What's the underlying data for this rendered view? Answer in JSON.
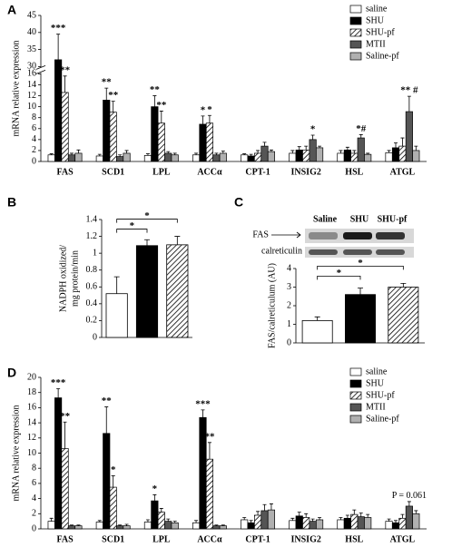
{
  "chart_data": [
    {
      "type": "grouped_bar",
      "label": "A",
      "ylabel": "mRNA relative expression",
      "categories": [
        "FAS",
        "SCD1",
        "LPL",
        "ACCα",
        "CPT-1",
        "INSIG2",
        "HSL",
        "ATGL"
      ],
      "ylim": [
        0,
        45
      ],
      "axis_break": [
        16,
        30
      ],
      "yticks": [
        0,
        2,
        4,
        6,
        8,
        10,
        12,
        14,
        16,
        30,
        35,
        40,
        45
      ],
      "legend": "upper right",
      "series": [
        {
          "name": "saline",
          "color": "#ffffff",
          "values": [
            1.2,
            1.0,
            1.1,
            1.2,
            1.2,
            1.5,
            1.5,
            1.6
          ],
          "errors": [
            0.2,
            0.3,
            0.3,
            0.3,
            0.2,
            0.5,
            0.5,
            0.4
          ]
        },
        {
          "name": "SHU",
          "color": "#000000",
          "values": [
            32,
            11.2,
            10.0,
            6.8,
            1.0,
            2.1,
            2.1,
            2.5
          ],
          "errors": [
            7.5,
            2.2,
            2.0,
            1.5,
            0.3,
            0.6,
            0.5,
            0.9
          ]
        },
        {
          "name": "SHU-pf",
          "color": "hatch",
          "values": [
            12.6,
            9.0,
            7.0,
            7.0,
            1.5,
            2.1,
            1.5,
            2.8
          ],
          "errors": [
            3.0,
            2.0,
            2.2,
            1.4,
            0.5,
            0.7,
            0.5,
            1.5
          ]
        },
        {
          "name": "MTII",
          "color": "#555555",
          "values": [
            1.2,
            0.9,
            1.5,
            1.2,
            2.8,
            4.0,
            4.3,
            9.1
          ],
          "errors": [
            0.3,
            0.3,
            0.3,
            0.3,
            0.7,
            0.8,
            0.6,
            2.8
          ]
        },
        {
          "name": "Saline-pf",
          "color": "#b0b0b0",
          "values": [
            1.5,
            1.5,
            1.2,
            1.5,
            1.8,
            2.5,
            1.3,
            2.0
          ],
          "errors": [
            0.6,
            0.5,
            0.3,
            0.4,
            0.3,
            0.3,
            0.2,
            0.8
          ]
        }
      ],
      "annotations": [
        {
          "category": 0,
          "series": 1,
          "text": "***"
        },
        {
          "category": 0,
          "series": 2,
          "text": "**"
        },
        {
          "category": 1,
          "series": 1,
          "text": "**"
        },
        {
          "category": 1,
          "series": 2,
          "text": "**"
        },
        {
          "category": 2,
          "series": 1,
          "text": "**"
        },
        {
          "category": 2,
          "series": 2,
          "text": "**"
        },
        {
          "category": 3,
          "series": 1,
          "text": "*"
        },
        {
          "category": 3,
          "series": 2,
          "text": "*"
        },
        {
          "category": 5,
          "series": 3,
          "text": "*"
        },
        {
          "category": 6,
          "series": 3,
          "text": "*#"
        },
        {
          "category": 7,
          "series": 3,
          "text": "** #"
        }
      ]
    },
    {
      "type": "bar",
      "label": "B",
      "ylabel": [
        "NADPH oxidized/",
        "mg protein/min"
      ],
      "values": [
        0.52,
        1.09,
        1.1
      ],
      "errors": [
        0.2,
        0.07,
        0.1
      ],
      "fills": [
        "#ffffff",
        "#000000",
        "hatch"
      ],
      "ylim": [
        0,
        1.4
      ],
      "yticks": [
        0,
        0.2,
        0.4,
        0.6,
        0.8,
        1,
        1.2,
        1.4
      ],
      "comparisons": [
        {
          "from": 0,
          "to": 1,
          "text": "*"
        },
        {
          "from": 0,
          "to": 2,
          "text": "*"
        }
      ]
    },
    {
      "type": "bar",
      "label": "C",
      "ylabel": [
        "FAS/calreticulum (AU)"
      ],
      "blot": {
        "lanes": [
          "Saline",
          "SHU",
          "SHU-pf"
        ],
        "rows": [
          "FAS",
          "calreticulin"
        ]
      },
      "values": [
        1.2,
        2.6,
        3.0
      ],
      "errors": [
        0.2,
        0.35,
        0.2
      ],
      "fills": [
        "#ffffff",
        "#000000",
        "hatch"
      ],
      "ylim": [
        0,
        4
      ],
      "yticks": [
        0,
        1,
        2,
        3,
        4
      ],
      "comparisons": [
        {
          "from": 0,
          "to": 1,
          "text": "*"
        },
        {
          "from": 0,
          "to": 2,
          "text": "*"
        }
      ]
    },
    {
      "type": "grouped_bar",
      "label": "D",
      "ylabel": "mRNA relative expression",
      "categories": [
        "FAS",
        "SCD1",
        "LPL",
        "ACCα",
        "CPT-1",
        "INSIG2",
        "HSL",
        "ATGL"
      ],
      "ylim": [
        0,
        20
      ],
      "yticks": [
        0,
        2,
        4,
        6,
        8,
        10,
        12,
        14,
        16,
        18,
        20
      ],
      "legend": "upper right",
      "series": [
        {
          "name": "saline",
          "color": "#ffffff",
          "values": [
            1.0,
            0.9,
            0.9,
            0.8,
            1.2,
            1.1,
            1.2,
            1.0
          ],
          "errors": [
            0.4,
            0.2,
            0.3,
            0.3,
            0.3,
            0.3,
            0.3,
            0.3
          ]
        },
        {
          "name": "SHU",
          "color": "#000000",
          "values": [
            17.3,
            12.6,
            3.7,
            14.7,
            0.8,
            1.7,
            1.4,
            0.8
          ],
          "errors": [
            1.2,
            3.5,
            0.8,
            1.0,
            0.3,
            0.5,
            0.4,
            0.3
          ]
        },
        {
          "name": "SHU-pf",
          "color": "hatch",
          "values": [
            10.6,
            5.5,
            2.2,
            9.2,
            1.8,
            1.5,
            1.9,
            1.4
          ],
          "errors": [
            3.5,
            1.5,
            0.5,
            2.2,
            0.5,
            0.5,
            0.6,
            0.5
          ]
        },
        {
          "name": "MTII",
          "color": "#555555",
          "values": [
            0.4,
            0.4,
            1.0,
            0.4,
            2.4,
            1.0,
            1.6,
            3.0
          ],
          "errors": [
            0.1,
            0.1,
            0.3,
            0.1,
            0.8,
            0.3,
            0.5,
            0.6
          ]
        },
        {
          "name": "Saline-pf",
          "color": "#b0b0b0",
          "values": [
            0.4,
            0.4,
            0.8,
            0.4,
            2.5,
            1.2,
            1.5,
            2.0
          ],
          "errors": [
            0.1,
            0.2,
            0.2,
            0.1,
            0.8,
            0.3,
            0.4,
            0.4
          ]
        }
      ],
      "annotations": [
        {
          "category": 0,
          "series": 1,
          "text": "***"
        },
        {
          "category": 0,
          "series": 2,
          "text": "**"
        },
        {
          "category": 1,
          "series": 1,
          "text": "**"
        },
        {
          "category": 1,
          "series": 2,
          "text": "*"
        },
        {
          "category": 2,
          "series": 1,
          "text": "*"
        },
        {
          "category": 3,
          "series": 1,
          "text": "***"
        },
        {
          "category": 3,
          "series": 2,
          "text": "**"
        },
        {
          "category": 7,
          "series": 3,
          "text": "P = 0.061"
        }
      ]
    }
  ]
}
